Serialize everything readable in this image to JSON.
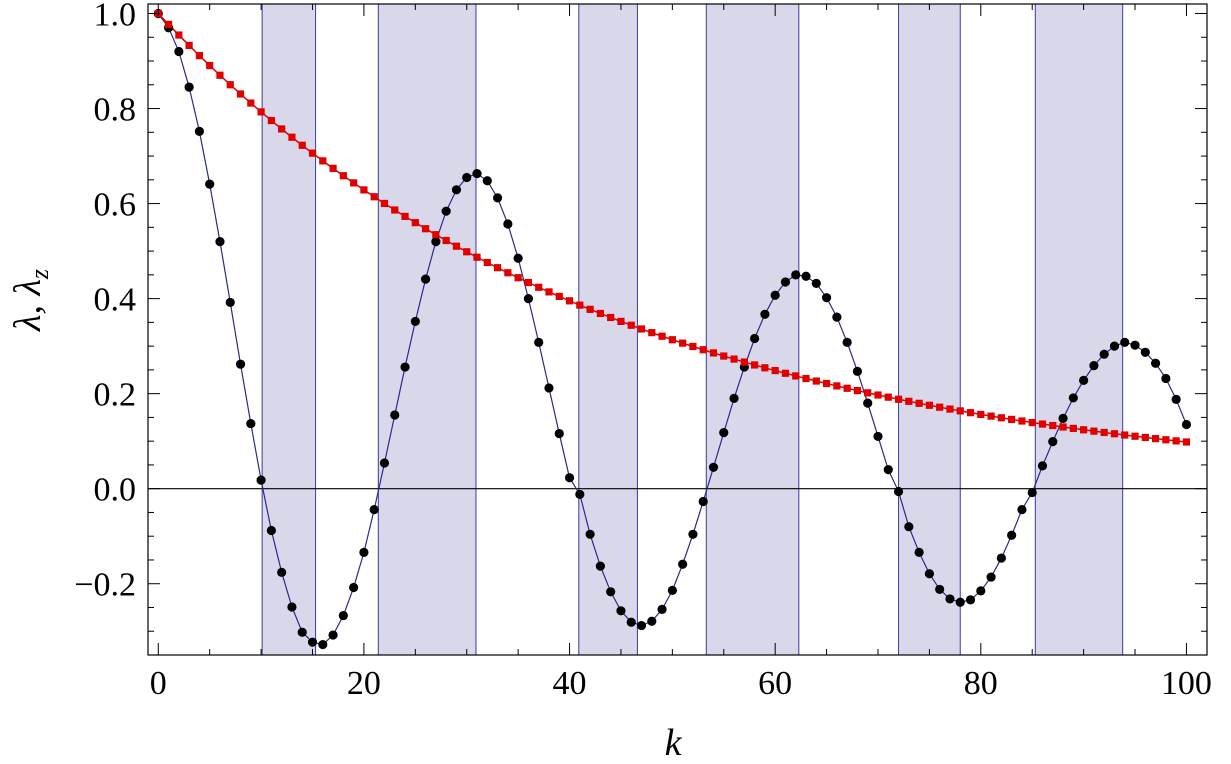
{
  "chart_data": {
    "type": "scatter",
    "title": "",
    "xlabel": "k",
    "ylabel": "λ, λ",
    "ylabel_subscript": "z",
    "xlim": [
      -1,
      102
    ],
    "ylim": [
      -0.35,
      1.02
    ],
    "x_ticks": [
      0,
      20,
      40,
      60,
      80,
      100
    ],
    "y_ticks": [
      -0.2,
      0.0,
      0.2,
      0.4,
      0.6,
      0.8,
      1.0
    ],
    "x_tick_labels": [
      "0",
      "20",
      "40",
      "60",
      "80",
      "100"
    ],
    "y_tick_labels": [
      "−0.2",
      "0.0",
      "0.2",
      "0.4",
      "0.6",
      "0.8",
      "1.0"
    ],
    "shaded_bands": [
      [
        10.1,
        15.3
      ],
      [
        21.4,
        30.9
      ],
      [
        40.9,
        46.6
      ],
      [
        53.3,
        62.3
      ],
      [
        72.0,
        78.0
      ],
      [
        85.3,
        93.8
      ]
    ],
    "series": [
      {
        "marker": "circle",
        "color": "#000000",
        "line_color": "#2a2a8a",
        "connected": true,
        "points": [
          [
            0,
            1.0
          ],
          [
            1,
            0.97
          ],
          [
            2,
            0.92
          ],
          [
            3,
            0.845
          ],
          [
            4,
            0.752
          ],
          [
            5,
            0.641
          ],
          [
            6,
            0.52
          ],
          [
            7,
            0.392
          ],
          [
            8,
            0.262
          ],
          [
            9,
            0.137
          ],
          [
            10,
            0.018
          ],
          [
            11,
            -0.088
          ],
          [
            12,
            -0.176
          ],
          [
            13,
            -0.249
          ],
          [
            14,
            -0.302
          ],
          [
            15,
            -0.323
          ],
          [
            16,
            -0.328
          ],
          [
            17,
            -0.308
          ],
          [
            18,
            -0.267
          ],
          [
            19,
            -0.208
          ],
          [
            20,
            -0.134
          ],
          [
            21,
            -0.044
          ],
          [
            22,
            0.054
          ],
          [
            23,
            0.155
          ],
          [
            24,
            0.256
          ],
          [
            25,
            0.352
          ],
          [
            26,
            0.441
          ],
          [
            27,
            0.52
          ],
          [
            28,
            0.584
          ],
          [
            29,
            0.629
          ],
          [
            30,
            0.655
          ],
          [
            31,
            0.663
          ],
          [
            32,
            0.648
          ],
          [
            33,
            0.612
          ],
          [
            34,
            0.557
          ],
          [
            35,
            0.485
          ],
          [
            36,
            0.4
          ],
          [
            37,
            0.308
          ],
          [
            38,
            0.212
          ],
          [
            39,
            0.116
          ],
          [
            40,
            0.023
          ],
          [
            41,
            -0.012
          ],
          [
            42,
            -0.096
          ],
          [
            43,
            -0.163
          ],
          [
            44,
            -0.217
          ],
          [
            45,
            -0.257
          ],
          [
            46,
            -0.281
          ],
          [
            47,
            -0.288
          ],
          [
            48,
            -0.279
          ],
          [
            49,
            -0.254
          ],
          [
            50,
            -0.214
          ],
          [
            51,
            -0.159
          ],
          [
            52,
            -0.096
          ],
          [
            53,
            -0.027
          ],
          [
            54,
            0.045
          ],
          [
            55,
            0.118
          ],
          [
            56,
            0.19
          ],
          [
            57,
            0.256
          ],
          [
            58,
            0.316
          ],
          [
            59,
            0.367
          ],
          [
            60,
            0.407
          ],
          [
            61,
            0.435
          ],
          [
            62,
            0.45
          ],
          [
            63,
            0.447
          ],
          [
            64,
            0.432
          ],
          [
            65,
            0.402
          ],
          [
            66,
            0.361
          ],
          [
            67,
            0.308
          ],
          [
            68,
            0.247
          ],
          [
            69,
            0.18
          ],
          [
            70,
            0.11
          ],
          [
            71,
            0.04
          ],
          [
            72,
            -0.006
          ],
          [
            73,
            -0.08
          ],
          [
            74,
            -0.134
          ],
          [
            75,
            -0.179
          ],
          [
            76,
            -0.212
          ],
          [
            77,
            -0.232
          ],
          [
            78,
            -0.239
          ],
          [
            79,
            -0.234
          ],
          [
            80,
            -0.215
          ],
          [
            81,
            -0.186
          ],
          [
            82,
            -0.146
          ],
          [
            83,
            -0.098
          ],
          [
            84,
            -0.044
          ],
          [
            85,
            -0.008
          ],
          [
            86,
            0.048
          ],
          [
            87,
            0.099
          ],
          [
            88,
            0.148
          ],
          [
            89,
            0.191
          ],
          [
            90,
            0.228
          ],
          [
            91,
            0.259
          ],
          [
            92,
            0.283
          ],
          [
            93,
            0.3
          ],
          [
            94,
            0.308
          ],
          [
            95,
            0.302
          ],
          [
            96,
            0.287
          ],
          [
            97,
            0.264
          ],
          [
            98,
            0.232
          ],
          [
            99,
            0.188
          ],
          [
            100,
            0.135
          ]
        ]
      },
      {
        "marker": "square",
        "color": "#e00000",
        "line_color": "#e00000",
        "connected": true,
        "decay_rate": 0.0232,
        "count": 101
      }
    ]
  }
}
